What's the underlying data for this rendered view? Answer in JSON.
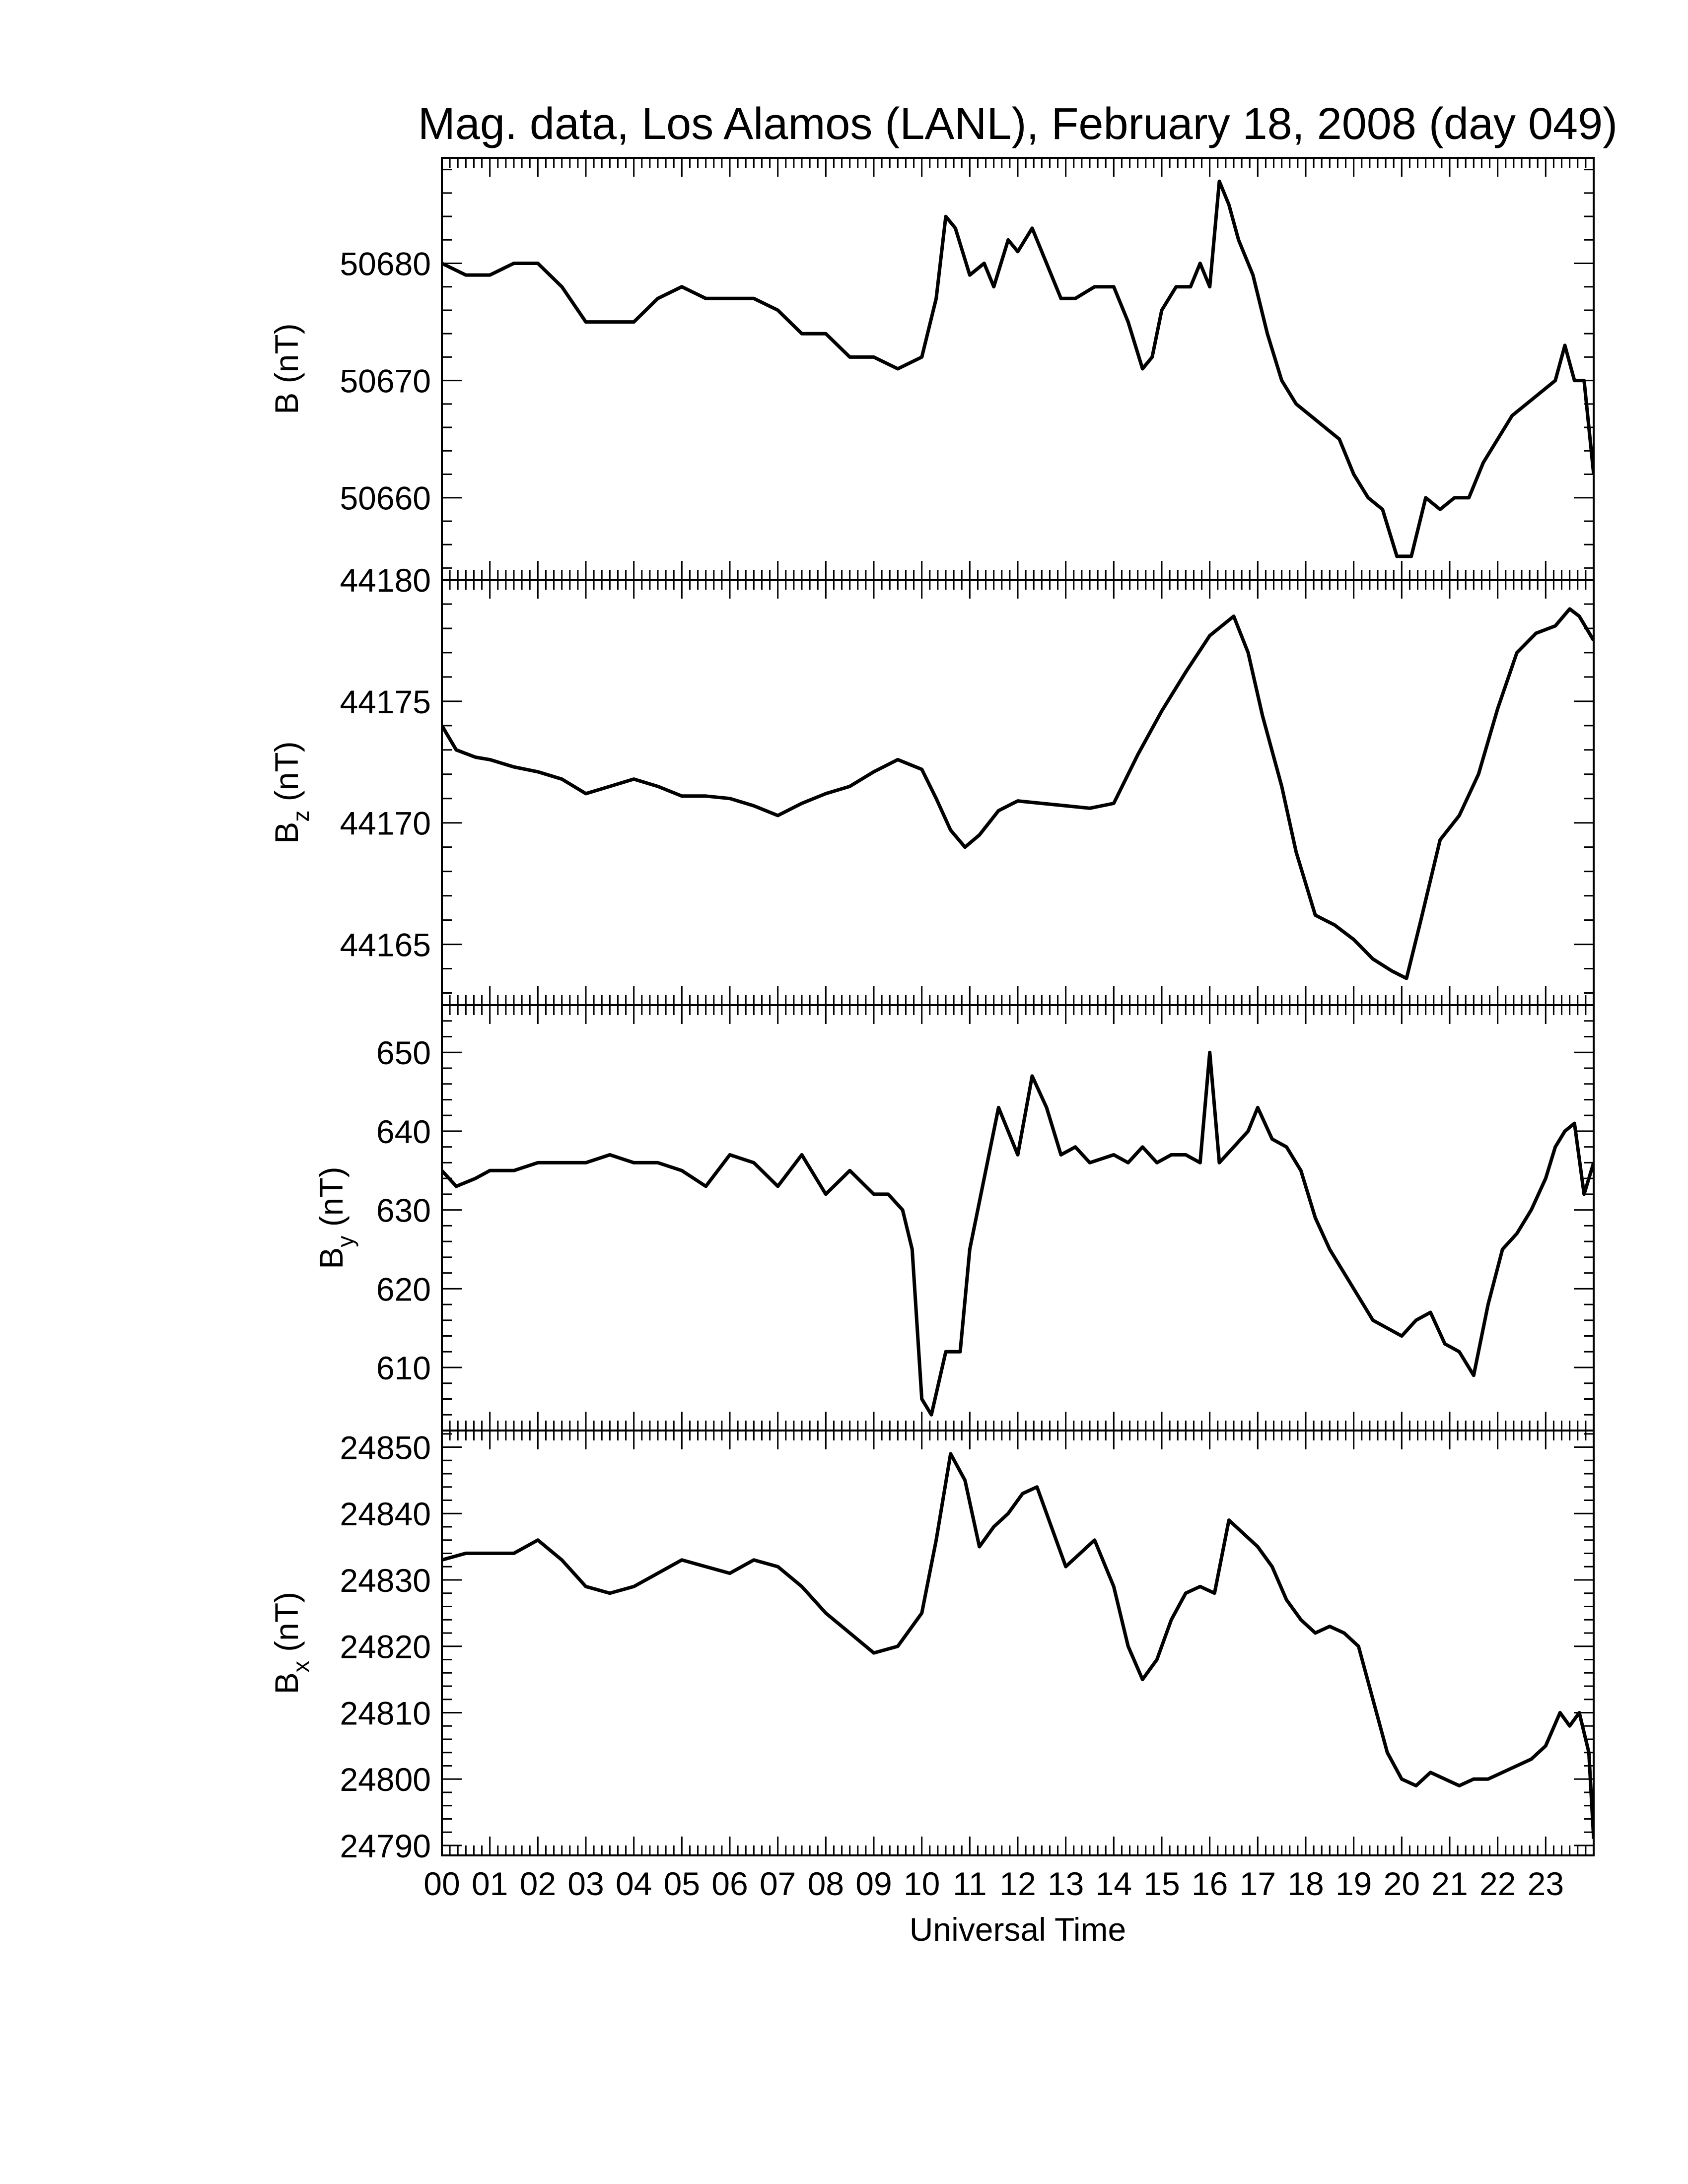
{
  "figure": {
    "title": "Mag. data, Los Alamos (LANL), February 18, 2008 (day 049)",
    "xlabel": "Universal Time",
    "x_tick_labels": [
      "00",
      "01",
      "02",
      "03",
      "04",
      "05",
      "06",
      "07",
      "08",
      "09",
      "10",
      "11",
      "12",
      "13",
      "14",
      "15",
      "16",
      "17",
      "18",
      "19",
      "20",
      "21",
      "22",
      "23"
    ],
    "line_color": "#000000"
  },
  "chart_data": [
    {
      "type": "line",
      "name": "B",
      "ylabel": "B (nT)",
      "ylabel_main": "B",
      "ylabel_sub": "",
      "ylabel_unit": "(nT)",
      "xlim": [
        0,
        24
      ],
      "ylim": [
        50653,
        50689
      ],
      "yticks": [
        50660,
        50670,
        50680
      ],
      "x": [
        0,
        0.5,
        1,
        1.5,
        2,
        2.5,
        3,
        3.5,
        4,
        4.5,
        5,
        5.5,
        6,
        6.5,
        7,
        7.5,
        8,
        8.5,
        9,
        9.5,
        10,
        10.3,
        10.5,
        10.7,
        11,
        11.3,
        11.5,
        11.8,
        12,
        12.3,
        12.6,
        12.9,
        13.2,
        13.6,
        14,
        14.3,
        14.6,
        14.8,
        15,
        15.3,
        15.6,
        15.8,
        16,
        16.2,
        16.4,
        16.6,
        16.9,
        17.2,
        17.5,
        17.8,
        18.1,
        18.4,
        18.7,
        19,
        19.3,
        19.6,
        19.9,
        20.2,
        20.5,
        20.8,
        21.1,
        21.4,
        21.7,
        22,
        22.3,
        22.6,
        22.9,
        23.2,
        23.4,
        23.6,
        23.8,
        24
      ],
      "y": [
        50680,
        50679,
        50679,
        50680,
        50680,
        50678,
        50675,
        50675,
        50675,
        50677,
        50678,
        50677,
        50677,
        50677,
        50676,
        50674,
        50674,
        50672,
        50672,
        50671,
        50672,
        50677,
        50684,
        50683,
        50679,
        50680,
        50678,
        50682,
        50681,
        50683,
        50680,
        50677,
        50677,
        50678,
        50678,
        50675,
        50671,
        50672,
        50676,
        50678,
        50678,
        50680,
        50678,
        50687,
        50685,
        50682,
        50679,
        50674,
        50670,
        50668,
        50667,
        50666,
        50665,
        50662,
        50660,
        50659,
        50655,
        50655,
        50660,
        50659,
        50660,
        50660,
        50663,
        50665,
        50667,
        50668,
        50669,
        50670,
        50673,
        50670,
        50670,
        50662
      ]
    },
    {
      "type": "line",
      "name": "Bz",
      "ylabel": "Bz (nT)",
      "ylabel_main": "B",
      "ylabel_sub": "z",
      "ylabel_unit": "(nT)",
      "xlim": [
        0,
        24
      ],
      "ylim": [
        44162.5,
        44180
      ],
      "yticks": [
        44165,
        44170,
        44175,
        44180
      ],
      "x": [
        0,
        0.3,
        0.7,
        1,
        1.5,
        2,
        2.5,
        3,
        3.5,
        4,
        4.5,
        5,
        5.5,
        6,
        6.5,
        7,
        7.5,
        8,
        8.5,
        9,
        9.5,
        10,
        10.3,
        10.6,
        10.9,
        11.2,
        11.6,
        12,
        12.5,
        13,
        13.5,
        14,
        14.5,
        15,
        15.5,
        16,
        16.5,
        16.8,
        17.1,
        17.5,
        17.8,
        18.2,
        18.6,
        19,
        19.4,
        19.8,
        20.1,
        20.4,
        20.8,
        21.2,
        21.6,
        22,
        22.4,
        22.8,
        23.2,
        23.5,
        23.7,
        24
      ],
      "y": [
        44174,
        44173,
        44172.7,
        44172.6,
        44172.3,
        44172.1,
        44171.8,
        44171.2,
        44171.5,
        44171.8,
        44171.5,
        44171.1,
        44171.1,
        44171,
        44170.7,
        44170.3,
        44170.8,
        44171.2,
        44171.5,
        44172.1,
        44172.6,
        44172.2,
        44171,
        44169.7,
        44169,
        44169.5,
        44170.5,
        44170.9,
        44170.8,
        44170.7,
        44170.6,
        44170.8,
        44172.8,
        44174.6,
        44176.2,
        44177.7,
        44178.5,
        44177,
        44174.4,
        44171.5,
        44168.8,
        44166.2,
        44165.8,
        44165.2,
        44164.4,
        44163.9,
        44163.6,
        44166,
        44169.3,
        44170.3,
        44172,
        44174.7,
        44177,
        44177.8,
        44178.1,
        44178.8,
        44178.5,
        44177.5
      ]
    },
    {
      "type": "line",
      "name": "By",
      "ylabel": "By (nT)",
      "ylabel_main": "B",
      "ylabel_sub": "y",
      "ylabel_unit": "(nT)",
      "xlim": [
        0,
        24
      ],
      "ylim": [
        602,
        656
      ],
      "yticks": [
        610,
        620,
        630,
        640,
        650
      ],
      "x": [
        0,
        0.3,
        0.7,
        1,
        1.5,
        2,
        2.5,
        3,
        3.5,
        4,
        4.5,
        5,
        5.5,
        6,
        6.5,
        7,
        7.5,
        8,
        8.5,
        9,
        9.3,
        9.6,
        9.8,
        10,
        10.2,
        10.5,
        10.8,
        11,
        11.3,
        11.6,
        12,
        12.3,
        12.6,
        12.9,
        13.2,
        13.5,
        14,
        14.3,
        14.6,
        14.9,
        15.2,
        15.5,
        15.8,
        16,
        16.2,
        16.5,
        16.8,
        17,
        17.3,
        17.6,
        17.9,
        18.2,
        18.5,
        18.8,
        19.1,
        19.4,
        19.7,
        20,
        20.3,
        20.6,
        20.9,
        21.2,
        21.5,
        21.8,
        22.1,
        22.4,
        22.7,
        23,
        23.2,
        23.4,
        23.6,
        23.8,
        24
      ],
      "y": [
        635,
        633,
        634,
        635,
        635,
        636,
        636,
        636,
        637,
        636,
        636,
        635,
        633,
        637,
        636,
        633,
        637,
        632,
        635,
        632,
        632,
        630,
        625,
        606,
        604,
        612,
        612,
        625,
        634,
        643,
        637,
        647,
        643,
        637,
        638,
        636,
        637,
        636,
        638,
        636,
        637,
        637,
        636,
        650,
        636,
        638,
        640,
        643,
        639,
        638,
        635,
        629,
        625,
        622,
        619,
        616,
        615,
        614,
        616,
        617,
        613,
        612,
        609,
        618,
        625,
        627,
        630,
        634,
        638,
        640,
        641,
        632,
        636
      ]
    },
    {
      "type": "line",
      "name": "Bx",
      "ylabel": "Bx (nT)",
      "ylabel_main": "B",
      "ylabel_sub": "x",
      "ylabel_unit": "(nT)",
      "xlim": [
        0,
        24
      ],
      "ylim": [
        24788.5,
        24852.5
      ],
      "yticks": [
        24790,
        24800,
        24810,
        24820,
        24830,
        24840,
        24850
      ],
      "x": [
        0,
        0.5,
        1,
        1.5,
        2,
        2.5,
        3,
        3.5,
        4,
        4.5,
        5,
        5.5,
        6,
        6.5,
        7,
        7.5,
        8,
        8.5,
        9,
        9.5,
        10,
        10.3,
        10.6,
        10.9,
        11.2,
        11.5,
        11.8,
        12.1,
        12.4,
        12.7,
        13,
        13.3,
        13.6,
        14,
        14.3,
        14.6,
        14.9,
        15.2,
        15.5,
        15.8,
        16.1,
        16.4,
        16.7,
        17,
        17.3,
        17.6,
        17.9,
        18.2,
        18.5,
        18.8,
        19.1,
        19.4,
        19.7,
        20,
        20.3,
        20.6,
        20.9,
        21.2,
        21.5,
        21.8,
        22.1,
        22.4,
        22.7,
        23,
        23.3,
        23.5,
        23.7,
        23.9,
        24
      ],
      "y": [
        24833,
        24834,
        24834,
        24834,
        24836,
        24833,
        24829,
        24828,
        24829,
        24831,
        24833,
        24832,
        24831,
        24833,
        24832,
        24829,
        24825,
        24822,
        24819,
        24820,
        24825,
        24836,
        24849,
        24845,
        24835,
        24838,
        24840,
        24843,
        24844,
        24838,
        24832,
        24834,
        24836,
        24829,
        24820,
        24815,
        24818,
        24824,
        24828,
        24829,
        24828,
        24839,
        24837,
        24835,
        24832,
        24827,
        24824,
        24822,
        24823,
        24822,
        24820,
        24812,
        24804,
        24800,
        24799,
        24801,
        24800,
        24799,
        24800,
        24800,
        24801,
        24802,
        24803,
        24805,
        24810,
        24808,
        24810,
        24804,
        24791
      ]
    }
  ]
}
